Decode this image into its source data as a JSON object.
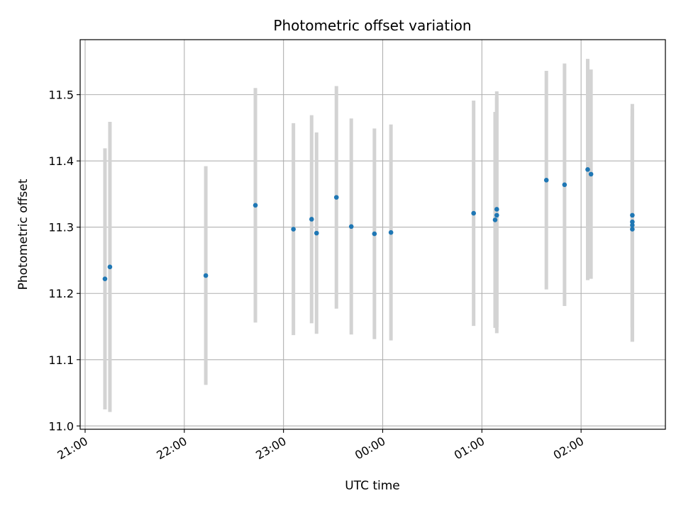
{
  "chart_data": {
    "type": "scatter",
    "title": "Photometric offset variation",
    "xlabel": "UTC time",
    "ylabel": "Photometric offset",
    "x_tick_labels": [
      "21:00",
      "22:00",
      "23:00",
      "00:00",
      "01:00",
      "02:00"
    ],
    "y_ticks": [
      11.0,
      11.1,
      11.2,
      11.3,
      11.4,
      11.5
    ],
    "y_tick_labels": [
      "11.0",
      "11.1",
      "11.2",
      "11.3",
      "11.4",
      "11.5"
    ],
    "ylim": [
      10.995,
      11.583
    ],
    "xlim": [
      "20:57",
      "02:51"
    ],
    "grid": true,
    "colors": {
      "points": "#1f77b4",
      "error_bars": "#d3d3d3",
      "grid": "#b0b0b0"
    },
    "points": [
      {
        "x": "21:12",
        "y": 11.222,
        "err": 0.197
      },
      {
        "x": "21:15",
        "y": 11.24,
        "err": 0.219
      },
      {
        "x": "22:13",
        "y": 11.227,
        "err": 0.165
      },
      {
        "x": "22:43",
        "y": 11.333,
        "err": 0.177
      },
      {
        "x": "23:06",
        "y": 11.297,
        "err": 0.16
      },
      {
        "x": "23:17",
        "y": 11.312,
        "err": 0.157
      },
      {
        "x": "23:20",
        "y": 11.291,
        "err": 0.152
      },
      {
        "x": "23:32",
        "y": 11.345,
        "err": 0.168
      },
      {
        "x": "23:41",
        "y": 11.301,
        "err": 0.163
      },
      {
        "x": "23:55",
        "y": 11.29,
        "err": 0.159
      },
      {
        "x": "00:05",
        "y": 11.292,
        "err": 0.163
      },
      {
        "x": "00:55",
        "y": 11.321,
        "err": 0.17
      },
      {
        "x": "01:08",
        "y": 11.311,
        "err": 0.163
      },
      {
        "x": "01:09",
        "y": 11.327,
        "err": 0.178
      },
      {
        "x": "01:09",
        "y": 11.318,
        "err": 0.178
      },
      {
        "x": "01:39",
        "y": 11.371,
        "err": 0.165
      },
      {
        "x": "01:50",
        "y": 11.364,
        "err": 0.183
      },
      {
        "x": "02:04",
        "y": 11.387,
        "err": 0.167
      },
      {
        "x": "02:06",
        "y": 11.38,
        "err": 0.158
      },
      {
        "x": "02:31",
        "y": 11.297,
        "err": 0.17
      },
      {
        "x": "02:31",
        "y": 11.303,
        "err": 0.176
      },
      {
        "x": "02:31",
        "y": 11.308,
        "err": 0.16
      },
      {
        "x": "02:31",
        "y": 11.318,
        "err": 0.168
      }
    ]
  }
}
